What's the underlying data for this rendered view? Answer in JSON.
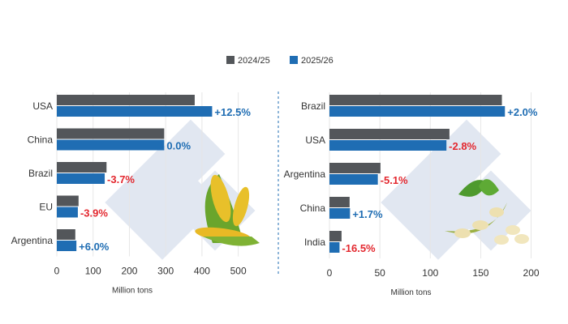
{
  "colors": {
    "series_2024": "#53565a",
    "series_2025": "#1f6db3",
    "positive": "#1f6db3",
    "negative": "#e3282f"
  },
  "legend": [
    "2024/25",
    "2025/26"
  ],
  "chart_data": [
    {
      "type": "bar",
      "orientation": "horizontal",
      "categories": [
        "USA",
        "China",
        "Brazil",
        "EU",
        "Argentina"
      ],
      "series": [
        {
          "name": "2024/25",
          "values": [
            380,
            296,
            137,
            60,
            51
          ]
        },
        {
          "name": "2025/26",
          "values": [
            428,
            296,
            132,
            58,
            54
          ]
        }
      ],
      "data_labels": [
        "+12.5%",
        "0.0%",
        "-3.7%",
        "-3.9%",
        "+6.0%"
      ],
      "xlabel": "Million tons",
      "xticks": [
        0,
        100,
        200,
        300,
        400,
        500
      ],
      "xlim": [
        0,
        550
      ],
      "grid": true,
      "image": "corn-icon"
    },
    {
      "type": "bar",
      "orientation": "horizontal",
      "categories": [
        "Brazil",
        "USA",
        "Argentina",
        "China",
        "India"
      ],
      "series": [
        {
          "name": "2024/25",
          "values": [
            171,
            119,
            50.6,
            20,
            12
          ]
        },
        {
          "name": "2025/26",
          "values": [
            174,
            116,
            48,
            20.4,
            10
          ]
        }
      ],
      "data_labels": [
        "+2.0%",
        "-2.8%",
        "-5.1%",
        "+1.7%",
        "-16.5%"
      ],
      "xlabel": "Million tons",
      "xticks": [
        0,
        50,
        100,
        150,
        200
      ],
      "xlim": [
        0,
        210
      ],
      "grid": true,
      "image": "soybean-icon"
    }
  ]
}
